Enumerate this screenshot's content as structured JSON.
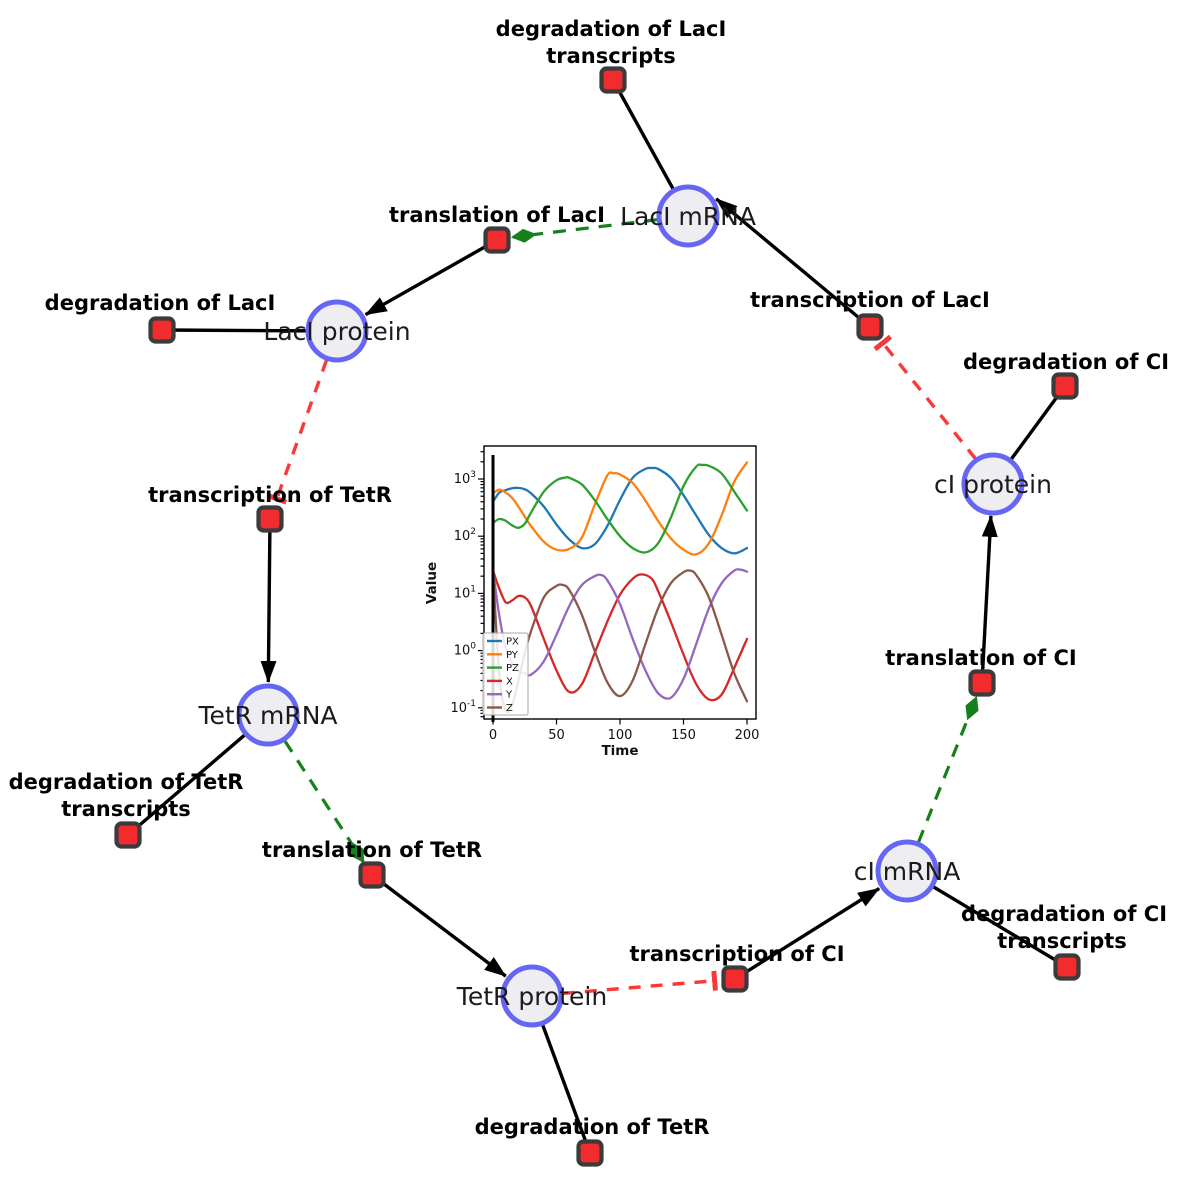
{
  "diagram": {
    "species": [
      {
        "id": "laci-mrna",
        "label": "LacI mRNA"
      },
      {
        "id": "laci-protein",
        "label": "LacI protein"
      },
      {
        "id": "ci-protein",
        "label": "cI protein"
      },
      {
        "id": "tetr-mrna",
        "label": "TetR mRNA"
      },
      {
        "id": "tetr-protein",
        "label": "TetR protein"
      },
      {
        "id": "ci-mrna",
        "label": "cI mRNA"
      }
    ],
    "reactions": [
      {
        "id": "deg-laci-transcripts",
        "lines": [
          "degradation of LacI",
          "transcripts"
        ]
      },
      {
        "id": "translation-laci",
        "lines": [
          "translation of LacI"
        ]
      },
      {
        "id": "transcription-laci",
        "lines": [
          "transcription of LacI"
        ]
      },
      {
        "id": "deg-ci",
        "lines": [
          "degradation of CI"
        ]
      },
      {
        "id": "deg-laci",
        "lines": [
          "degradation of LacI"
        ]
      },
      {
        "id": "transcription-tetr",
        "lines": [
          "transcription of TetR"
        ]
      },
      {
        "id": "translation-ci",
        "lines": [
          "translation of CI"
        ]
      },
      {
        "id": "deg-tetr-transcripts",
        "lines": [
          "degradation of TetR",
          "transcripts"
        ]
      },
      {
        "id": "translation-tetr",
        "lines": [
          "translation of TetR"
        ]
      },
      {
        "id": "transcription-ci",
        "lines": [
          "transcription of CI"
        ]
      },
      {
        "id": "deg-ci-transcripts",
        "lines": [
          "degradation of CI",
          "transcripts"
        ]
      },
      {
        "id": "deg-tetr",
        "lines": [
          "degradation of TetR"
        ]
      }
    ],
    "edges": [
      {
        "from": "LacI mRNA",
        "to": "degradation of LacI transcripts",
        "type": "consumption-line"
      },
      {
        "from": "LacI mRNA",
        "to": "translation of LacI",
        "type": "modifier-green-dashed"
      },
      {
        "from": "transcription of LacI",
        "to": "LacI mRNA",
        "type": "production-arrow"
      },
      {
        "from": "cI protein",
        "to": "transcription of LacI",
        "type": "inhibition-red-dashed"
      },
      {
        "from": "translation of LacI",
        "to": "LacI protein",
        "type": "production-arrow"
      },
      {
        "from": "LacI protein",
        "to": "degradation of LacI",
        "type": "consumption-line"
      },
      {
        "from": "LacI protein",
        "to": "transcription of TetR",
        "type": "inhibition-red-dashed"
      },
      {
        "from": "transcription of TetR",
        "to": "TetR mRNA",
        "type": "production-arrow"
      },
      {
        "from": "TetR mRNA",
        "to": "degradation of TetR transcripts",
        "type": "consumption-line"
      },
      {
        "from": "TetR mRNA",
        "to": "translation of TetR",
        "type": "modifier-green-dashed"
      },
      {
        "from": "translation of TetR",
        "to": "TetR protein",
        "type": "production-arrow"
      },
      {
        "from": "TetR protein",
        "to": "degradation of TetR",
        "type": "consumption-line"
      },
      {
        "from": "TetR protein",
        "to": "transcription of CI",
        "type": "inhibition-red-dashed"
      },
      {
        "from": "transcription of CI",
        "to": "cI mRNA",
        "type": "production-arrow"
      },
      {
        "from": "cI mRNA",
        "to": "degradation of CI transcripts",
        "type": "consumption-line"
      },
      {
        "from": "cI mRNA",
        "to": "translation of CI",
        "type": "modifier-green-dashed"
      },
      {
        "from": "translation of CI",
        "to": "cI protein",
        "type": "production-arrow"
      },
      {
        "from": "cI protein",
        "to": "degradation of CI",
        "type": "consumption-line"
      }
    ],
    "colors": {
      "species_fill": "#eeeef2",
      "species_stroke": "#6666f5",
      "reaction_fill": "#f22b2e",
      "reaction_stroke": "#3b3b3b",
      "edge_black": "#000000",
      "edge_catalysis_green": "#15801c",
      "edge_inhibition_red": "#fb3838"
    }
  },
  "chart_data": {
    "type": "line",
    "title": "",
    "xlabel": "Time",
    "ylabel": "Value",
    "xlim": [
      0,
      200
    ],
    "xticks": [
      0,
      50,
      100,
      150,
      200
    ],
    "yscale": "log",
    "ytick_exponents": [
      -1,
      0,
      1,
      2,
      3
    ],
    "grid": false,
    "legend_position": "lower left",
    "initial_spike_x": 0,
    "series": [
      {
        "name": "PX",
        "color": "#1f77b4",
        "points": [
          [
            0,
            400
          ],
          [
            5,
            580
          ],
          [
            10,
            640
          ],
          [
            15,
            690
          ],
          [
            20,
            700
          ],
          [
            25,
            660
          ],
          [
            30,
            560
          ],
          [
            40,
            330
          ],
          [
            50,
            160
          ],
          [
            60,
            88
          ],
          [
            70,
            62
          ],
          [
            80,
            72
          ],
          [
            90,
            150
          ],
          [
            100,
            430
          ],
          [
            110,
            1050
          ],
          [
            120,
            1500
          ],
          [
            125,
            1560
          ],
          [
            130,
            1500
          ],
          [
            140,
            1050
          ],
          [
            150,
            520
          ],
          [
            160,
            230
          ],
          [
            170,
            105
          ],
          [
            180,
            62
          ],
          [
            190,
            50
          ],
          [
            200,
            62
          ]
        ]
      },
      {
        "name": "PY",
        "color": "#ff7f0e",
        "points": [
          [
            0,
            560
          ],
          [
            5,
            650
          ],
          [
            10,
            580
          ],
          [
            15,
            470
          ],
          [
            20,
            330
          ],
          [
            25,
            220
          ],
          [
            30,
            150
          ],
          [
            40,
            80
          ],
          [
            50,
            58
          ],
          [
            60,
            60
          ],
          [
            70,
            95
          ],
          [
            80,
            350
          ],
          [
            90,
            1150
          ],
          [
            95,
            1260
          ],
          [
            100,
            1200
          ],
          [
            110,
            850
          ],
          [
            120,
            420
          ],
          [
            130,
            185
          ],
          [
            140,
            92
          ],
          [
            150,
            58
          ],
          [
            160,
            48
          ],
          [
            170,
            75
          ],
          [
            180,
            230
          ],
          [
            190,
            900
          ],
          [
            200,
            1950
          ]
        ]
      },
      {
        "name": "PZ",
        "color": "#2ca02c",
        "points": [
          [
            0,
            170
          ],
          [
            5,
            200
          ],
          [
            10,
            185
          ],
          [
            15,
            155
          ],
          [
            20,
            140
          ],
          [
            25,
            165
          ],
          [
            30,
            260
          ],
          [
            40,
            600
          ],
          [
            50,
            950
          ],
          [
            57,
            1060
          ],
          [
            60,
            1050
          ],
          [
            70,
            800
          ],
          [
            80,
            430
          ],
          [
            90,
            200
          ],
          [
            100,
            100
          ],
          [
            110,
            62
          ],
          [
            120,
            52
          ],
          [
            130,
            75
          ],
          [
            140,
            210
          ],
          [
            150,
            750
          ],
          [
            160,
            1650
          ],
          [
            165,
            1760
          ],
          [
            170,
            1700
          ],
          [
            180,
            1250
          ],
          [
            190,
            600
          ],
          [
            200,
            280
          ]
        ]
      },
      {
        "name": "X",
        "color": "#d62728",
        "points": [
          [
            0,
            25
          ],
          [
            5,
            12
          ],
          [
            10,
            7
          ],
          [
            15,
            7.5
          ],
          [
            20,
            9
          ],
          [
            25,
            8.5
          ],
          [
            30,
            6
          ],
          [
            40,
            1.6
          ],
          [
            50,
            0.45
          ],
          [
            60,
            0.19
          ],
          [
            70,
            0.26
          ],
          [
            80,
            0.9
          ],
          [
            90,
            3.2
          ],
          [
            100,
            9.5
          ],
          [
            110,
            18
          ],
          [
            117,
            21.5
          ],
          [
            125,
            18
          ],
          [
            130,
            11
          ],
          [
            140,
            3.2
          ],
          [
            150,
            0.85
          ],
          [
            160,
            0.26
          ],
          [
            170,
            0.14
          ],
          [
            180,
            0.17
          ],
          [
            190,
            0.5
          ],
          [
            200,
            1.6
          ]
        ]
      },
      {
        "name": "Y",
        "color": "#9467bd",
        "points": [
          [
            0,
            25
          ],
          [
            5,
            4
          ],
          [
            10,
            1.1
          ],
          [
            15,
            0.6
          ],
          [
            20,
            0.45
          ],
          [
            25,
            0.4
          ],
          [
            30,
            0.38
          ],
          [
            40,
            0.65
          ],
          [
            50,
            1.9
          ],
          [
            60,
            6
          ],
          [
            70,
            14
          ],
          [
            80,
            20
          ],
          [
            85,
            21
          ],
          [
            90,
            17
          ],
          [
            100,
            6.5
          ],
          [
            110,
            1.6
          ],
          [
            120,
            0.45
          ],
          [
            130,
            0.18
          ],
          [
            140,
            0.15
          ],
          [
            150,
            0.32
          ],
          [
            160,
            1.3
          ],
          [
            170,
            5.5
          ],
          [
            180,
            15
          ],
          [
            190,
            25
          ],
          [
            195,
            26
          ],
          [
            200,
            24
          ]
        ]
      },
      {
        "name": "Z",
        "color": "#8c564b",
        "points": [
          [
            0,
            25
          ],
          [
            5,
            0.35
          ],
          [
            10,
            0.09
          ],
          [
            15,
            0.11
          ],
          [
            20,
            0.3
          ],
          [
            25,
            0.9
          ],
          [
            30,
            2.2
          ],
          [
            40,
            8.5
          ],
          [
            50,
            13.5
          ],
          [
            55,
            14
          ],
          [
            60,
            11.5
          ],
          [
            70,
            4.2
          ],
          [
            80,
            1
          ],
          [
            90,
            0.28
          ],
          [
            100,
            0.16
          ],
          [
            110,
            0.3
          ],
          [
            120,
            1.3
          ],
          [
            130,
            5.5
          ],
          [
            140,
            15
          ],
          [
            150,
            23.5
          ],
          [
            155,
            25
          ],
          [
            160,
            21
          ],
          [
            170,
            8.5
          ],
          [
            180,
            1.9
          ],
          [
            190,
            0.4
          ],
          [
            200,
            0.13
          ]
        ]
      }
    ]
  }
}
